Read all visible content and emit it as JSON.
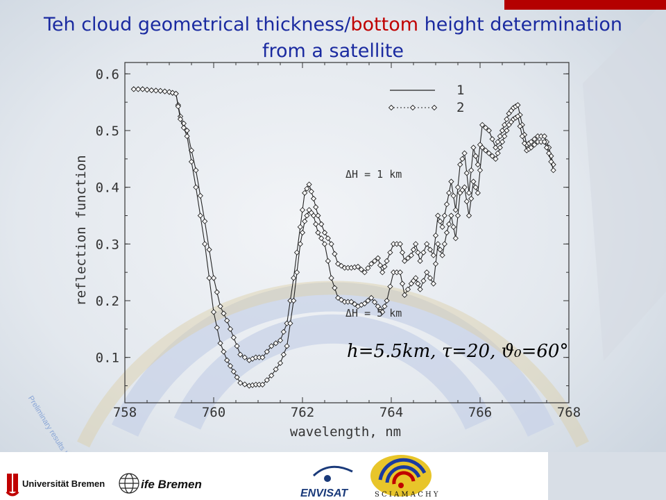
{
  "title": {
    "line1_pre": "Teh cloud geometrical thickness/",
    "line1_highlight": "bottom",
    "line1_post": " height  determination",
    "line2": "from a satellite"
  },
  "watermark": "Preliminary results !",
  "footer": {
    "uni_bremen": "Universität Bremen",
    "ife_bremen": "ife Bremen",
    "envisat": "ENVISAT",
    "sciamachy": "S C I A M A C H Y"
  },
  "colors": {
    "title": "#1a2aa0",
    "highlight": "#c00000",
    "accent_bar": "#b40000"
  },
  "chart_data": {
    "type": "line",
    "title": "",
    "xlabel": "wavelength, nm",
    "ylabel": "reflection function",
    "xlim": [
      758,
      768
    ],
    "ylim": [
      0.02,
      0.62
    ],
    "xticks": [
      "758",
      "760",
      "762",
      "764",
      "766",
      "768"
    ],
    "yticks": [
      "0.1",
      "0.2",
      "0.3",
      "0.4",
      "0.5",
      "0.6"
    ],
    "legend": {
      "position": "top-right",
      "entries": [
        "1",
        "2"
      ]
    },
    "annotations": [
      "ΔH = 1 km",
      "ΔH = 5 km"
    ],
    "formula": "h=5.5km, τ=20, ϑ₀=60°",
    "series": [
      {
        "name": "ΔH = 1 km",
        "points": [
          [
            758.2,
            0.573
          ],
          [
            758.4,
            0.573
          ],
          [
            758.6,
            0.571
          ],
          [
            758.8,
            0.57
          ],
          [
            759.0,
            0.568
          ],
          [
            759.15,
            0.565
          ],
          [
            759.25,
            0.525
          ],
          [
            759.4,
            0.5
          ],
          [
            759.6,
            0.43
          ],
          [
            759.8,
            0.34
          ],
          [
            760.0,
            0.24
          ],
          [
            760.15,
            0.19
          ],
          [
            760.3,
            0.165
          ],
          [
            760.45,
            0.135
          ],
          [
            760.6,
            0.105
          ],
          [
            760.8,
            0.095
          ],
          [
            760.95,
            0.1
          ],
          [
            761.1,
            0.1
          ],
          [
            761.3,
            0.12
          ],
          [
            761.5,
            0.13
          ],
          [
            761.65,
            0.16
          ],
          [
            761.8,
            0.24
          ],
          [
            761.95,
            0.33
          ],
          [
            762.05,
            0.39
          ],
          [
            762.15,
            0.405
          ],
          [
            762.25,
            0.38
          ],
          [
            762.35,
            0.35
          ],
          [
            762.5,
            0.32
          ],
          [
            762.65,
            0.3
          ],
          [
            762.8,
            0.265
          ],
          [
            762.95,
            0.258
          ],
          [
            763.1,
            0.258
          ],
          [
            763.25,
            0.26
          ],
          [
            763.4,
            0.25
          ],
          [
            763.55,
            0.265
          ],
          [
            763.7,
            0.275
          ],
          [
            763.8,
            0.25
          ],
          [
            763.9,
            0.27
          ],
          [
            764.05,
            0.3
          ],
          [
            764.2,
            0.3
          ],
          [
            764.3,
            0.27
          ],
          [
            764.45,
            0.28
          ],
          [
            764.55,
            0.3
          ],
          [
            764.65,
            0.27
          ],
          [
            764.8,
            0.3
          ],
          [
            764.95,
            0.28
          ],
          [
            765.05,
            0.35
          ],
          [
            765.15,
            0.33
          ],
          [
            765.25,
            0.37
          ],
          [
            765.35,
            0.41
          ],
          [
            765.45,
            0.36
          ],
          [
            765.55,
            0.44
          ],
          [
            765.65,
            0.46
          ],
          [
            765.75,
            0.39
          ],
          [
            765.85,
            0.47
          ],
          [
            765.95,
            0.44
          ],
          [
            766.05,
            0.51
          ],
          [
            766.2,
            0.5
          ],
          [
            766.35,
            0.47
          ],
          [
            766.45,
            0.49
          ],
          [
            766.55,
            0.51
          ],
          [
            766.65,
            0.53
          ],
          [
            766.75,
            0.54
          ],
          [
            766.85,
            0.545
          ],
          [
            766.95,
            0.51
          ],
          [
            767.05,
            0.475
          ],
          [
            767.15,
            0.48
          ],
          [
            767.3,
            0.49
          ],
          [
            767.45,
            0.49
          ],
          [
            767.55,
            0.47
          ],
          [
            767.65,
            0.44
          ]
        ]
      },
      {
        "name": "ΔH = 5 km",
        "points": [
          [
            758.2,
            0.573
          ],
          [
            758.4,
            0.573
          ],
          [
            758.6,
            0.571
          ],
          [
            758.8,
            0.57
          ],
          [
            759.0,
            0.568
          ],
          [
            759.15,
            0.565
          ],
          [
            759.25,
            0.52
          ],
          [
            759.4,
            0.49
          ],
          [
            759.6,
            0.4
          ],
          [
            759.8,
            0.3
          ],
          [
            760.0,
            0.18
          ],
          [
            760.15,
            0.125
          ],
          [
            760.3,
            0.095
          ],
          [
            760.45,
            0.075
          ],
          [
            760.6,
            0.055
          ],
          [
            760.8,
            0.05
          ],
          [
            760.95,
            0.052
          ],
          [
            761.1,
            0.052
          ],
          [
            761.3,
            0.068
          ],
          [
            761.5,
            0.09
          ],
          [
            761.65,
            0.12
          ],
          [
            761.8,
            0.2
          ],
          [
            761.95,
            0.3
          ],
          [
            762.05,
            0.34
          ],
          [
            762.15,
            0.36
          ],
          [
            762.25,
            0.35
          ],
          [
            762.35,
            0.32
          ],
          [
            762.5,
            0.3
          ],
          [
            762.65,
            0.24
          ],
          [
            762.8,
            0.205
          ],
          [
            762.95,
            0.198
          ],
          [
            763.1,
            0.198
          ],
          [
            763.25,
            0.19
          ],
          [
            763.4,
            0.195
          ],
          [
            763.55,
            0.205
          ],
          [
            763.7,
            0.19
          ],
          [
            763.8,
            0.18
          ],
          [
            763.9,
            0.2
          ],
          [
            764.05,
            0.25
          ],
          [
            764.2,
            0.25
          ],
          [
            764.3,
            0.21
          ],
          [
            764.45,
            0.23
          ],
          [
            764.55,
            0.24
          ],
          [
            764.65,
            0.22
          ],
          [
            764.8,
            0.25
          ],
          [
            764.95,
            0.23
          ],
          [
            765.05,
            0.3
          ],
          [
            765.15,
            0.28
          ],
          [
            765.25,
            0.32
          ],
          [
            765.35,
            0.35
          ],
          [
            765.45,
            0.31
          ],
          [
            765.55,
            0.39
          ],
          [
            765.65,
            0.4
          ],
          [
            765.75,
            0.35
          ],
          [
            765.85,
            0.41
          ],
          [
            765.95,
            0.39
          ],
          [
            766.05,
            0.47
          ],
          [
            766.2,
            0.46
          ],
          [
            766.35,
            0.45
          ],
          [
            766.45,
            0.47
          ],
          [
            766.55,
            0.49
          ],
          [
            766.65,
            0.51
          ],
          [
            766.75,
            0.52
          ],
          [
            766.85,
            0.525
          ],
          [
            766.95,
            0.49
          ],
          [
            767.05,
            0.465
          ],
          [
            767.15,
            0.47
          ],
          [
            767.3,
            0.48
          ],
          [
            767.45,
            0.48
          ],
          [
            767.55,
            0.46
          ],
          [
            767.65,
            0.43
          ]
        ]
      }
    ]
  }
}
